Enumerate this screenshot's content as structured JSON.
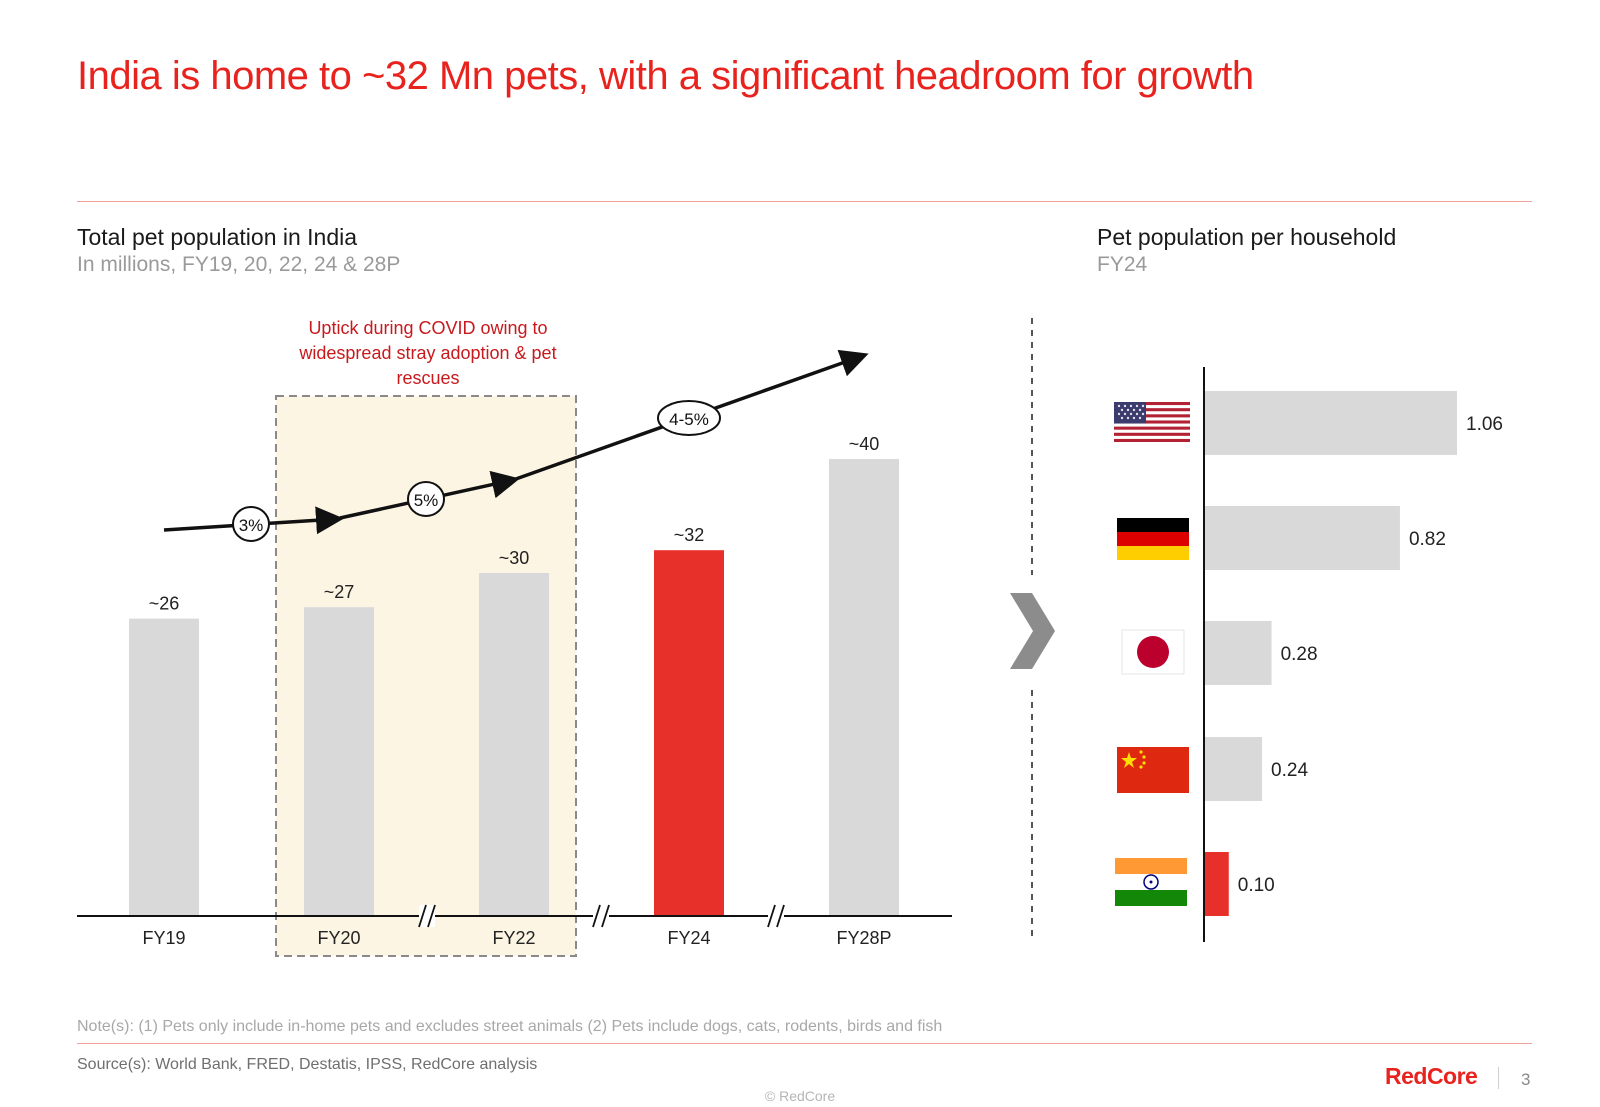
{
  "title": "India is home to ~32 Mn pets, with a significant headroom for growth",
  "left_panel": {
    "heading": "Total pet population in India",
    "subheading": "In millions, FY19, 20, 22, 24 & 28P",
    "annotation": "Uptick during COVID owing to widespread stray adoption & pet rescues",
    "growth_labels": [
      "3%",
      "5%",
      "4-5%"
    ]
  },
  "right_panel": {
    "heading": "Pet population per household",
    "subheading": "FY24"
  },
  "footer": {
    "note": "Note(s): (1) Pets only include in-home pets and excludes street animals (2) Pets include dogs, cats, rodents, birds and fish",
    "source": "Source(s): World Bank, FRED,  Destatis, IPSS, RedCore analysis",
    "brand": "RedCore",
    "page_number": "3",
    "copyright": "© RedCore"
  },
  "colors": {
    "accent": "#e8231e",
    "bar_grey": "#d9d9d9",
    "bar_highlight": "#e8302a",
    "covid_fill": "#fdf5e4"
  },
  "chart_data": [
    {
      "type": "bar",
      "title": "Total pet population in India",
      "subtitle": "In millions, FY19, 20, 22, 24 & 28P",
      "categories": [
        "FY19",
        "FY20",
        "FY22",
        "FY24",
        "FY28P"
      ],
      "values": [
        26,
        27,
        30,
        32,
        40
      ],
      "data_labels": [
        "~26",
        "~27",
        "~30",
        "~32",
        "~40"
      ],
      "highlight": [
        false,
        false,
        false,
        true,
        false
      ],
      "ylim": [
        0,
        40
      ],
      "axis_breaks_after": [
        "FY20",
        "FY22",
        "FY24"
      ],
      "covid_highlight_categories": [
        "FY20",
        "FY22"
      ],
      "growth_annotations": [
        "3%",
        "5%",
        "4-5%"
      ]
    },
    {
      "type": "bar",
      "orientation": "horizontal",
      "title": "Pet population per household",
      "subtitle": "FY24",
      "categories": [
        "USA",
        "Germany",
        "Japan",
        "China",
        "India"
      ],
      "icons": [
        "usa-flag-icon",
        "germany-flag-icon",
        "japan-flag-icon",
        "china-flag-icon",
        "india-flag-icon"
      ],
      "values": [
        1.06,
        0.82,
        0.28,
        0.24,
        0.1
      ],
      "data_labels": [
        "1.06",
        "0.82",
        "0.28",
        "0.24",
        "0.10"
      ],
      "highlight": [
        false,
        false,
        false,
        false,
        true
      ],
      "xlim": [
        0,
        1.06
      ]
    }
  ]
}
